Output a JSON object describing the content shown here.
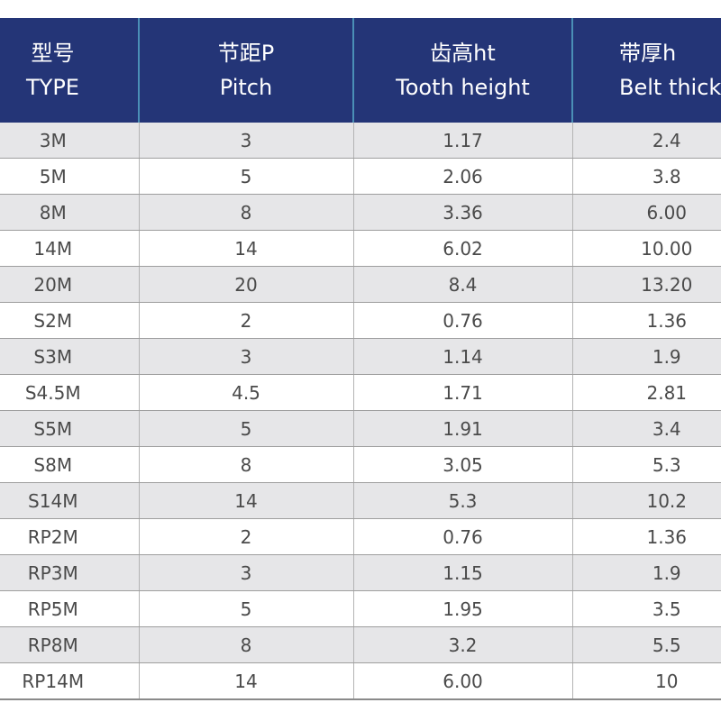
{
  "table": {
    "headers": [
      {
        "zh": "型号",
        "en": "TYPE"
      },
      {
        "zh": "节距P",
        "en": "Pitch"
      },
      {
        "zh": "齿高ht",
        "en": "Tooth height"
      },
      {
        "zh": "带厚h",
        "en": "Belt thick"
      }
    ],
    "rows": [
      [
        "3M",
        "3",
        "1.17",
        "2.4"
      ],
      [
        "5M",
        "5",
        "2.06",
        "3.8"
      ],
      [
        "8M",
        "8",
        "3.36",
        "6.00"
      ],
      [
        "14M",
        "14",
        "6.02",
        "10.00"
      ],
      [
        "20M",
        "20",
        "8.4",
        "13.20"
      ],
      [
        "S2M",
        "2",
        "0.76",
        "1.36"
      ],
      [
        "S3M",
        "3",
        "1.14",
        "1.9"
      ],
      [
        "S4.5M",
        "4.5",
        "1.71",
        "2.81"
      ],
      [
        "S5M",
        "5",
        "1.91",
        "3.4"
      ],
      [
        "S8M",
        "8",
        "3.05",
        "5.3"
      ],
      [
        "S14M",
        "14",
        "5.3",
        "10.2"
      ],
      [
        "RP2M",
        "2",
        "0.76",
        "1.36"
      ],
      [
        "RP3M",
        "3",
        "1.15",
        "1.9"
      ],
      [
        "RP5M",
        "5",
        "1.95",
        "3.5"
      ],
      [
        "RP8M",
        "8",
        "3.2",
        "5.5"
      ],
      [
        "RP14M",
        "14",
        "6.00",
        "10"
      ]
    ]
  },
  "colors": {
    "header_background": "#243577",
    "header_text": "#ffffff",
    "header_divider": "#4a8fb6",
    "row_shaded": "#e6e6e8",
    "row_plain": "#ffffff",
    "cell_text": "#4a4a4a"
  }
}
